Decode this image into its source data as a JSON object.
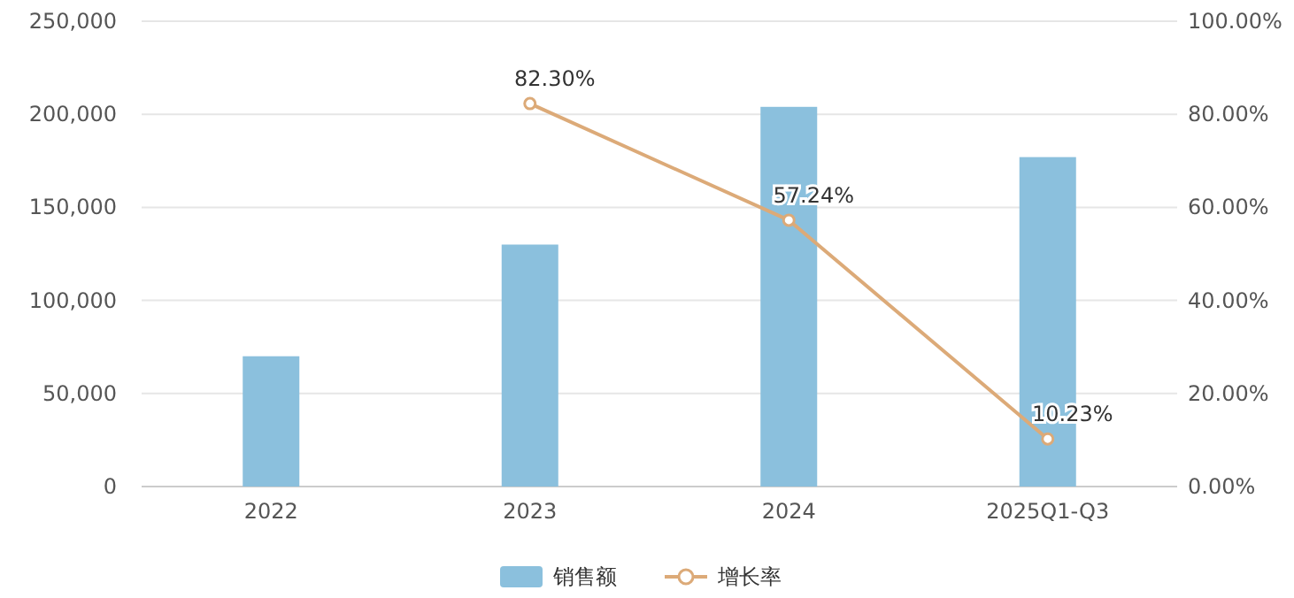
{
  "chart_data": {
    "type": "bar",
    "categories": [
      "2022",
      "2023",
      "2024",
      "2025Q1-Q3"
    ],
    "series": [
      {
        "name": "销售额",
        "color": "#8bc0dd",
        "values": [
          70000,
          130000,
          204000,
          177000
        ]
      },
      {
        "name": "增长率",
        "type": "line",
        "axis": "y2",
        "color": "#dcaa78",
        "values": [
          null,
          82.3,
          57.24,
          10.23
        ],
        "value_labels": [
          null,
          "82.30%",
          "57.24%",
          "10.23%"
        ],
        "marker": "circle"
      }
    ],
    "ylim": [
      0,
      250000
    ],
    "yticks": [
      0,
      {
        "value": 50000,
        "label": "50,000"
      },
      {
        "value": 100000,
        "label": "100,000"
      },
      {
        "value": 150000,
        "label": "150,000"
      },
      {
        "value": 200000,
        "label": "200,000"
      },
      {
        "value": 250000,
        "label": "250,000"
      }
    ],
    "y2lim": [
      0,
      100
    ],
    "y2ticks": [
      {
        "value": 0,
        "label": "0.00%"
      },
      {
        "value": 20,
        "label": "20.00%"
      },
      {
        "value": 40,
        "label": "40.00%"
      },
      {
        "value": 60,
        "label": "60.00%"
      },
      {
        "value": 80,
        "label": "80.00%"
      },
      {
        "value": 100,
        "label": "100.00%"
      }
    ],
    "grid": "y",
    "legend": "bottom"
  }
}
